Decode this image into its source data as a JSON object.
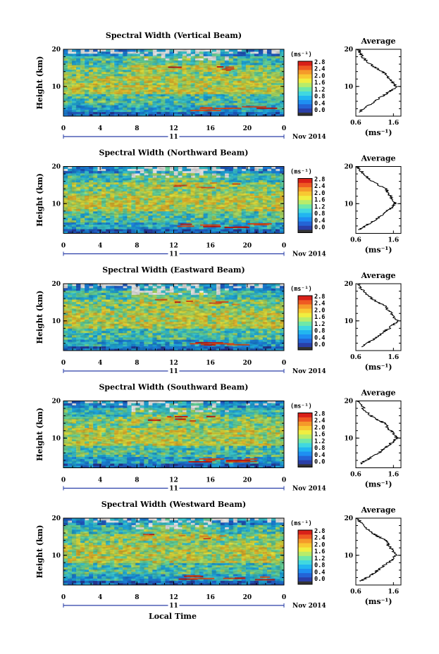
{
  "chart_data": {
    "type": "heatmap",
    "time_ticks": [
      "0",
      "4",
      "8",
      "12",
      "16",
      "20",
      "0"
    ],
    "height_ticks": [
      "20",
      "10"
    ],
    "date_day": "11",
    "date_month_year": "Nov 2014",
    "xlabel": "Local Time",
    "ylabel": "Height (km)",
    "colorbar": {
      "unit_label": "(ms⁻¹)",
      "ticks": [
        "2.8",
        "2.4",
        "2.0",
        "1.6",
        "1.2",
        "0.8",
        "0.4",
        "0.0"
      ],
      "colors": [
        "#2a3fa8",
        "#2464d6",
        "#1e8ff2",
        "#22b6f0",
        "#40d8e0",
        "#6fe8a8",
        "#b8ec6a",
        "#f0ee40",
        "#f8c832",
        "#f59a2a",
        "#ef5a22",
        "#d92018"
      ]
    },
    "average": {
      "title": "Average",
      "ylabel": "(ms⁻¹)",
      "x_ticks": [
        "0.6",
        "1.6"
      ],
      "y_ticks": [
        "20",
        "10"
      ],
      "xlim": [
        0.6,
        1.8
      ],
      "ylim": [
        2,
        20
      ]
    },
    "panels": [
      {
        "title": "Spectral Width (Vertical Beam)",
        "profile": [
          [
            3,
            0.68
          ],
          [
            4,
            0.8
          ],
          [
            5,
            0.96
          ],
          [
            6,
            1.1
          ],
          [
            7,
            1.24
          ],
          [
            8,
            1.4
          ],
          [
            9,
            1.55
          ],
          [
            10,
            1.68
          ],
          [
            11,
            1.6
          ],
          [
            12,
            1.5
          ],
          [
            13,
            1.42
          ],
          [
            14,
            1.32
          ],
          [
            15,
            1.12
          ],
          [
            16,
            0.98
          ],
          [
            17,
            0.86
          ],
          [
            18,
            0.78
          ],
          [
            19,
            0.72
          ],
          [
            20,
            0.66
          ]
        ]
      },
      {
        "title": "Spectral Width (Northward Beam)",
        "profile": [
          [
            3,
            0.7
          ],
          [
            4,
            0.86
          ],
          [
            5,
            1.02
          ],
          [
            6,
            1.18
          ],
          [
            7,
            1.3
          ],
          [
            8,
            1.44
          ],
          [
            9,
            1.56
          ],
          [
            10,
            1.64
          ],
          [
            11,
            1.6
          ],
          [
            12,
            1.52
          ],
          [
            13,
            1.46
          ],
          [
            14,
            1.4
          ],
          [
            15,
            1.2
          ],
          [
            16,
            1.05
          ],
          [
            17,
            0.92
          ],
          [
            18,
            0.82
          ],
          [
            19,
            0.72
          ],
          [
            20,
            0.64
          ]
        ]
      },
      {
        "title": "Spectral Width (Eastward Beam)",
        "profile": [
          [
            3,
            0.72
          ],
          [
            4,
            0.9
          ],
          [
            5,
            1.06
          ],
          [
            6,
            1.2
          ],
          [
            7,
            1.34
          ],
          [
            8,
            1.48
          ],
          [
            9,
            1.6
          ],
          [
            10,
            1.7
          ],
          [
            11,
            1.62
          ],
          [
            12,
            1.54
          ],
          [
            13,
            1.46
          ],
          [
            14,
            1.38
          ],
          [
            15,
            1.18
          ],
          [
            16,
            1.02
          ],
          [
            17,
            0.9
          ],
          [
            18,
            0.8
          ],
          [
            19,
            0.72
          ],
          [
            20,
            0.66
          ]
        ]
      },
      {
        "title": "Spectral Width (Southward Beam)",
        "profile": [
          [
            3,
            0.7
          ],
          [
            4,
            0.88
          ],
          [
            5,
            1.04
          ],
          [
            6,
            1.2
          ],
          [
            7,
            1.34
          ],
          [
            8,
            1.46
          ],
          [
            9,
            1.58
          ],
          [
            10,
            1.68
          ],
          [
            11,
            1.62
          ],
          [
            12,
            1.52
          ],
          [
            13,
            1.44
          ],
          [
            14,
            1.36
          ],
          [
            15,
            1.16
          ],
          [
            16,
            1.0
          ],
          [
            17,
            0.88
          ],
          [
            18,
            0.8
          ],
          [
            19,
            0.74
          ],
          [
            20,
            0.68
          ]
        ]
      },
      {
        "title": "Spectral Width (Westward Beam)",
        "profile": [
          [
            3,
            0.72
          ],
          [
            4,
            0.9
          ],
          [
            5,
            1.06
          ],
          [
            6,
            1.2
          ],
          [
            7,
            1.32
          ],
          [
            8,
            1.46
          ],
          [
            9,
            1.58
          ],
          [
            10,
            1.66
          ],
          [
            11,
            1.6
          ],
          [
            12,
            1.52
          ],
          [
            13,
            1.46
          ],
          [
            14,
            1.42
          ],
          [
            15,
            1.2
          ],
          [
            16,
            1.04
          ],
          [
            17,
            0.9
          ],
          [
            18,
            0.8
          ],
          [
            19,
            0.72
          ],
          [
            20,
            0.64
          ]
        ]
      }
    ]
  }
}
